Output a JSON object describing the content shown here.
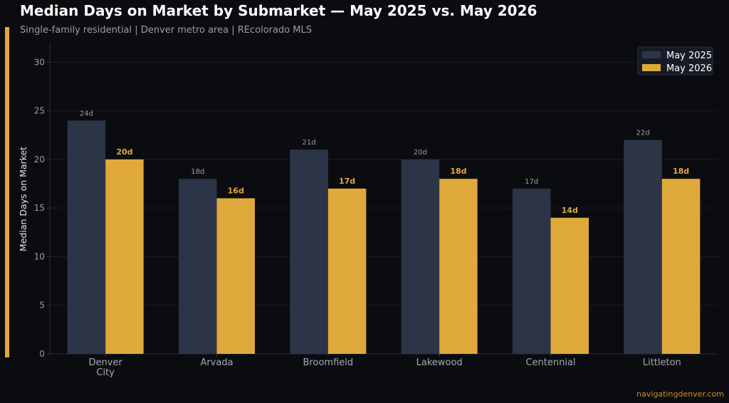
{
  "title": "Median Days on Market by Submarket — May 2025 vs. May 2026",
  "subtitle": "Single-family residential | Denver metro area | REcolorado MLS",
  "credit": "navigatingdenver.com",
  "colors": {
    "background": "#0b0c10",
    "series_2025": "#2b3547",
    "series_2026": "#e0a93b",
    "accent": "#e0a93b"
  },
  "chart_data": {
    "type": "bar",
    "title": "Median Days on Market by Submarket — May 2025 vs. May 2026",
    "subtitle": "Single-family residential | Denver metro area | REcolorado MLS",
    "ylabel": "Median Days on Market",
    "xlabel": "",
    "categories": [
      [
        "Denver",
        "City"
      ],
      [
        "Arvada"
      ],
      [
        "Broomfield"
      ],
      [
        "Lakewood"
      ],
      [
        "Centennial"
      ],
      [
        "Littleton"
      ]
    ],
    "series": [
      {
        "name": "May 2025",
        "values": [
          24,
          18,
          21,
          20,
          17,
          22
        ],
        "labels": [
          "24d",
          "18d",
          "21d",
          "20d",
          "17d",
          "22d"
        ]
      },
      {
        "name": "May 2026",
        "values": [
          20,
          16,
          17,
          18,
          14,
          18
        ],
        "labels": [
          "20d",
          "16d",
          "17d",
          "18d",
          "14d",
          "18d"
        ]
      }
    ],
    "ylim": [
      0,
      32
    ],
    "yticks": [
      0,
      5,
      10,
      15,
      20,
      25,
      30
    ],
    "grid": true,
    "legend": "top-right"
  }
}
